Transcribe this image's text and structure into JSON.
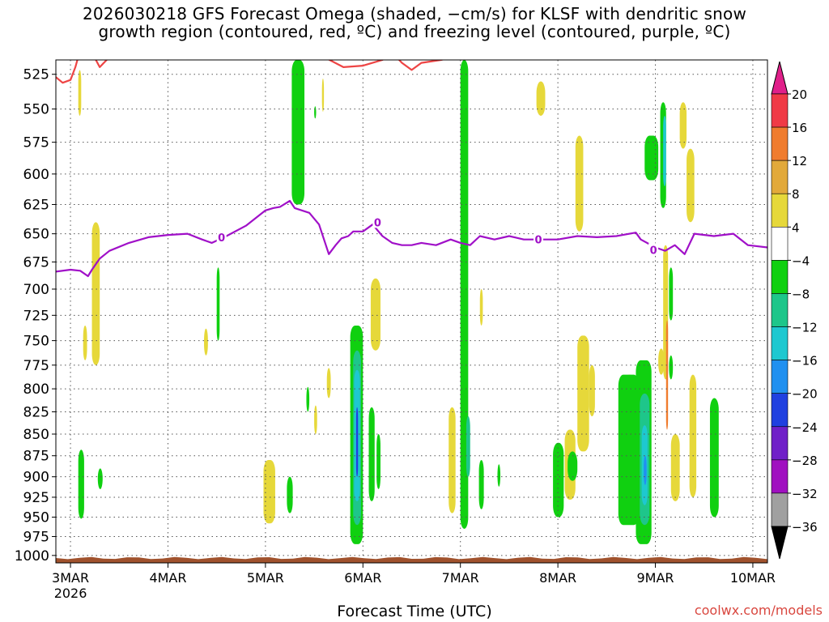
{
  "header": {
    "title_line1": "2026030218 GFS Forecast Omega (shaded, −cm/s) for KLSF with dendritic snow",
    "title_line2": "growth region (contoured, red, ºC) and freezing level (contoured, purple, ºC)"
  },
  "footer": {
    "xlabel": "Forecast Time (UTC)",
    "credit": "coolwx.com/models"
  },
  "chart_data": {
    "type": "heatmap",
    "title": "2026030218 GFS Forecast Omega (shaded, −cm/s) for KLSF with dendritic snow growth region (contoured, red, ºC) and freezing level (contoured, purple, ºC)",
    "xlabel": "Forecast Time (UTC)",
    "ylabel": "",
    "x_axis": {
      "unit": "days since 3MAR 2026 00Z",
      "range": [
        -0.15,
        7.15
      ],
      "ticks": [
        {
          "value": 0,
          "label": "3MAR",
          "sublabel": "2026"
        },
        {
          "value": 1,
          "label": "4MAR"
        },
        {
          "value": 2,
          "label": "5MAR"
        },
        {
          "value": 3,
          "label": "6MAR"
        },
        {
          "value": 4,
          "label": "7MAR"
        },
        {
          "value": 5,
          "label": "8MAR"
        },
        {
          "value": 6,
          "label": "9MAR"
        },
        {
          "value": 7,
          "label": "10MAR"
        }
      ]
    },
    "y_axis": {
      "unit": "hPa",
      "range": [
        1010,
        515
      ],
      "ticks": [
        525,
        550,
        575,
        600,
        625,
        650,
        675,
        700,
        725,
        750,
        775,
        800,
        825,
        850,
        875,
        900,
        925,
        950,
        975,
        1000
      ]
    },
    "grid": true,
    "colorbar": {
      "position": "right",
      "unit": "-cm/s",
      "labels": [
        "20",
        "16",
        "12",
        "8",
        "4",
        "−4",
        "−8",
        "−12",
        "−16",
        "−20",
        "−24",
        "−28",
        "−32",
        "−36"
      ],
      "bins": [
        {
          "range": [
            16,
            20
          ],
          "color": "#f03a46"
        },
        {
          "range": [
            12,
            16
          ],
          "color": "#f07c2e"
        },
        {
          "range": [
            8,
            12
          ],
          "color": "#e2a93a"
        },
        {
          "range": [
            4,
            8
          ],
          "color": "#e6d83a"
        },
        {
          "range": [
            -4,
            4
          ],
          "color": "#ffffff"
        },
        {
          "range": [
            -8,
            -4
          ],
          "color": "#10d010"
        },
        {
          "range": [
            -12,
            -8
          ],
          "color": "#1ec68a"
        },
        {
          "range": [
            -16,
            -12
          ],
          "color": "#1ec8d0"
        },
        {
          "range": [
            -20,
            -16
          ],
          "color": "#2090f0"
        },
        {
          "range": [
            -24,
            -20
          ],
          "color": "#2040e0"
        },
        {
          "range": [
            -28,
            -24
          ],
          "color": "#7020c8"
        },
        {
          "range": [
            -32,
            -28
          ],
          "color": "#a010c0"
        },
        {
          "range": [
            -36,
            -32
          ],
          "color": "#a0a0a0"
        }
      ],
      "overflow_top_color": "#e0208a",
      "overflow_bottom_color": "#000000"
    },
    "shaded_regions": [
      {
        "t0": 0.08,
        "t1": 0.11,
        "p0": 522,
        "p1": 555,
        "value": 5
      },
      {
        "t0": 0.22,
        "t1": 0.3,
        "p0": 640,
        "p1": 775,
        "value": 5
      },
      {
        "t0": 0.13,
        "t1": 0.17,
        "p0": 735,
        "p1": 770,
        "value": 5
      },
      {
        "t0": 0.08,
        "t1": 0.14,
        "p0": 868,
        "p1": 952,
        "value": -5
      },
      {
        "t0": 0.28,
        "t1": 0.33,
        "p0": 890,
        "p1": 915,
        "value": -5
      },
      {
        "t0": 1.37,
        "t1": 1.41,
        "p0": 738,
        "p1": 765,
        "value": 5
      },
      {
        "t0": 1.5,
        "t1": 1.53,
        "p0": 680,
        "p1": 750,
        "value": -5
      },
      {
        "t0": 1.98,
        "t1": 2.1,
        "p0": 880,
        "p1": 958,
        "value": 5
      },
      {
        "t0": 2.22,
        "t1": 2.28,
        "p0": 900,
        "p1": 945,
        "value": -5
      },
      {
        "t0": 2.27,
        "t1": 2.4,
        "p0": 515,
        "p1": 625,
        "value": -5
      },
      {
        "t0": 2.5,
        "t1": 2.52,
        "p0": 548,
        "p1": 557,
        "value": -5
      },
      {
        "t0": 2.58,
        "t1": 2.6,
        "p0": 528,
        "p1": 552,
        "value": 5
      },
      {
        "t0": 2.63,
        "t1": 2.67,
        "p0": 778,
        "p1": 810,
        "value": 5
      },
      {
        "t0": 2.42,
        "t1": 2.45,
        "p0": 798,
        "p1": 825,
        "value": -5
      },
      {
        "t0": 2.5,
        "t1": 2.53,
        "p0": 818,
        "p1": 850,
        "value": 5
      },
      {
        "t0": 2.87,
        "t1": 3.0,
        "p0": 735,
        "p1": 985,
        "value": -6
      },
      {
        "t0": 2.9,
        "t1": 2.98,
        "p0": 760,
        "p1": 960,
        "value": -10
      },
      {
        "t0": 2.91,
        "t1": 2.97,
        "p0": 780,
        "p1": 930,
        "value": -14
      },
      {
        "t0": 2.93,
        "t1": 2.95,
        "p0": 820,
        "p1": 900,
        "value": -22
      },
      {
        "t0": 3.06,
        "t1": 3.12,
        "p0": 820,
        "p1": 930,
        "value": -5
      },
      {
        "t0": 3.14,
        "t1": 3.18,
        "p0": 850,
        "p1": 915,
        "value": -5
      },
      {
        "t0": 3.08,
        "t1": 3.18,
        "p0": 690,
        "p1": 760,
        "value": 5
      },
      {
        "t0": 4.0,
        "t1": 4.08,
        "p0": 515,
        "p1": 965,
        "value": -5
      },
      {
        "t0": 4.06,
        "t1": 4.1,
        "p0": 830,
        "p1": 900,
        "value": -10
      },
      {
        "t0": 3.88,
        "t1": 3.95,
        "p0": 820,
        "p1": 945,
        "value": 5
      },
      {
        "t0": 4.2,
        "t1": 4.23,
        "p0": 700,
        "p1": 735,
        "value": 5
      },
      {
        "t0": 4.19,
        "t1": 4.24,
        "p0": 880,
        "p1": 940,
        "value": -5
      },
      {
        "t0": 4.38,
        "t1": 4.41,
        "p0": 885,
        "p1": 912,
        "value": -5
      },
      {
        "t0": 4.78,
        "t1": 4.87,
        "p0": 530,
        "p1": 555,
        "value": 5
      },
      {
        "t0": 5.18,
        "t1": 5.26,
        "p0": 570,
        "p1": 648,
        "value": 5
      },
      {
        "t0": 5.2,
        "t1": 5.32,
        "p0": 745,
        "p1": 870,
        "value": 5
      },
      {
        "t0": 5.32,
        "t1": 5.38,
        "p0": 775,
        "p1": 830,
        "value": 5
      },
      {
        "t0": 5.07,
        "t1": 5.18,
        "p0": 845,
        "p1": 928,
        "value": 5
      },
      {
        "t0": 4.95,
        "t1": 5.06,
        "p0": 860,
        "p1": 950,
        "value": -5
      },
      {
        "t0": 5.1,
        "t1": 5.2,
        "p0": 870,
        "p1": 905,
        "value": -5
      },
      {
        "t0": 5.68,
        "t1": 5.79,
        "p0": 785,
        "p1": 845,
        "value": 5
      },
      {
        "t0": 5.89,
        "t1": 6.03,
        "p0": 570,
        "p1": 605,
        "value": -5
      },
      {
        "t0": 6.05,
        "t1": 6.11,
        "p0": 545,
        "p1": 628,
        "value": -8
      },
      {
        "t0": 6.08,
        "t1": 6.11,
        "p0": 555,
        "p1": 610,
        "value": -14
      },
      {
        "t0": 6.25,
        "t1": 6.32,
        "p0": 545,
        "p1": 580,
        "value": 5
      },
      {
        "t0": 6.32,
        "t1": 6.4,
        "p0": 580,
        "p1": 640,
        "value": 5
      },
      {
        "t0": 6.08,
        "t1": 6.13,
        "p0": 660,
        "p1": 790,
        "value": 5
      },
      {
        "t0": 6.11,
        "t1": 6.13,
        "p0": 730,
        "p1": 845,
        "value": 12
      },
      {
        "t0": 6.03,
        "t1": 6.09,
        "p0": 758,
        "p1": 785,
        "value": 5
      },
      {
        "t0": 6.14,
        "t1": 6.18,
        "p0": 680,
        "p1": 730,
        "value": -5
      },
      {
        "t0": 6.14,
        "t1": 6.18,
        "p0": 765,
        "p1": 790,
        "value": -5
      },
      {
        "t0": 5.62,
        "t1": 5.83,
        "p0": 785,
        "p1": 960,
        "value": -6
      },
      {
        "t0": 5.8,
        "t1": 5.96,
        "p0": 770,
        "p1": 985,
        "value": -7
      },
      {
        "t0": 5.84,
        "t1": 5.94,
        "p0": 805,
        "p1": 960,
        "value": -10
      },
      {
        "t0": 5.86,
        "t1": 5.92,
        "p0": 840,
        "p1": 935,
        "value": -14
      },
      {
        "t0": 5.88,
        "t1": 5.91,
        "p0": 875,
        "p1": 910,
        "value": -17
      },
      {
        "t0": 6.16,
        "t1": 6.25,
        "p0": 850,
        "p1": 930,
        "value": 5
      },
      {
        "t0": 6.35,
        "t1": 6.42,
        "p0": 785,
        "p1": 925,
        "value": 5
      },
      {
        "t0": 6.56,
        "t1": 6.65,
        "p0": 810,
        "p1": 950,
        "value": -5
      }
    ],
    "series": [
      {
        "name": "freezing level (0 ºC)",
        "color": "#a010c8",
        "contour_label": "0",
        "x": [
          -0.25,
          0.0,
          0.1,
          0.18,
          0.22,
          0.3,
          0.4,
          0.6,
          0.8,
          1.0,
          1.2,
          1.35,
          1.45,
          1.6,
          1.8,
          2.0,
          2.08,
          2.15,
          2.25,
          2.3,
          2.45,
          2.55,
          2.65,
          2.72,
          2.78,
          2.85,
          2.9,
          3.0,
          3.1,
          3.2,
          3.3,
          3.4,
          3.5,
          3.6,
          3.75,
          3.9,
          4.0,
          4.1,
          4.2,
          4.35,
          4.5,
          4.65,
          4.8,
          5.0,
          5.2,
          5.4,
          5.6,
          5.8,
          5.85,
          6.0,
          6.1,
          6.2,
          6.3,
          6.4,
          6.6,
          6.8,
          6.95,
          7.15
        ],
        "y": [
          685,
          682,
          683,
          688,
          682,
          672,
          665,
          658,
          653,
          651,
          650,
          655,
          658,
          652,
          643,
          630,
          628,
          627,
          622,
          628,
          632,
          642,
          668,
          660,
          654,
          652,
          648,
          648,
          642,
          652,
          658,
          660,
          660,
          658,
          660,
          655,
          658,
          660,
          652,
          655,
          652,
          655,
          655,
          655,
          652,
          653,
          652,
          649,
          655,
          662,
          665,
          660,
          668,
          650,
          652,
          650,
          660,
          662
        ],
        "labels_at": [
          [
            1.55,
            653
          ],
          [
            3.15,
            640
          ],
          [
            4.8,
            655
          ],
          [
            5.98,
            664
          ]
        ]
      },
      {
        "name": "dendritic snow growth region (red)",
        "color": "#ee4444",
        "x": [
          -0.25,
          -0.2,
          -0.15,
          -0.08,
          0.0,
          0.05,
          0.1,
          0.22,
          0.3,
          0.4,
          0.6,
          0.8,
          1.0,
          1.2,
          1.4,
          1.6,
          1.8,
          2.0,
          2.1,
          2.2,
          2.3,
          2.4,
          2.45,
          2.6,
          2.8,
          3.0,
          3.2,
          3.3,
          3.4,
          3.5,
          3.6,
          3.8,
          4.0,
          4.2,
          4.4,
          4.6,
          4.8,
          5.0,
          5.5,
          6.0,
          6.5,
          6.82,
          6.9,
          7.0
        ],
        "y": [
          535,
          529,
          527,
          531,
          529,
          520,
          508,
          510,
          520,
          513,
          509,
          511,
          508,
          510,
          511,
          512,
          508,
          508,
          508,
          510,
          510,
          510,
          510,
          513,
          520,
          519,
          515,
          510,
          517,
          522,
          517,
          515,
          512,
          510,
          512,
          513,
          509,
          509,
          509,
          509,
          509,
          509,
          512,
          509
        ]
      }
    ],
    "terrain": {
      "name": "ground",
      "color": "#a0522d",
      "surface_pressure_range": [
        1002,
        1005
      ]
    }
  }
}
